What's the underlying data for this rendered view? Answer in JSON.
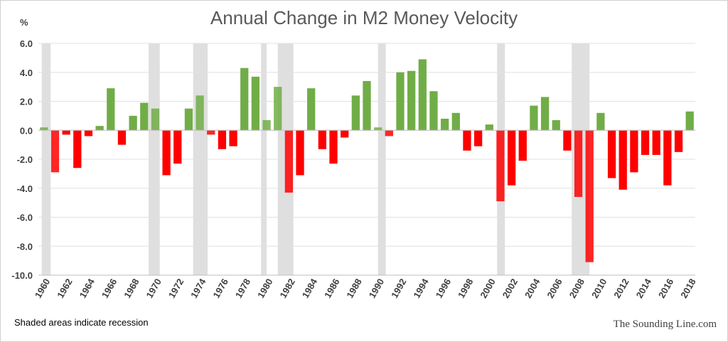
{
  "chart_data": {
    "type": "bar",
    "title": "Annual Change in M2 Money Velocity",
    "ylabel": "%",
    "ylim": [
      -10,
      6
    ],
    "yticks": [
      "6.0",
      "4.0",
      "2.0",
      "0.0",
      "-2.0",
      "-4.0",
      "-6.0",
      "-8.0",
      "-10.0"
    ],
    "ytick_values": [
      6,
      4,
      2,
      0,
      -2,
      -4,
      -6,
      -8,
      -10
    ],
    "x": [
      1960,
      1961,
      1962,
      1963,
      1964,
      1965,
      1966,
      1967,
      1968,
      1969,
      1970,
      1971,
      1972,
      1973,
      1974,
      1975,
      1976,
      1977,
      1978,
      1979,
      1980,
      1981,
      1982,
      1983,
      1984,
      1985,
      1986,
      1987,
      1988,
      1989,
      1990,
      1991,
      1992,
      1993,
      1994,
      1995,
      1996,
      1997,
      1998,
      1999,
      2000,
      2001,
      2002,
      2003,
      2004,
      2005,
      2006,
      2007,
      2008,
      2009,
      2010,
      2011,
      2012,
      2013,
      2014,
      2015,
      2016,
      2017,
      2018
    ],
    "xtick_labels": [
      "1960",
      "1962",
      "1964",
      "1966",
      "1968",
      "1970",
      "1972",
      "1974",
      "1976",
      "1978",
      "1980",
      "1982",
      "1984",
      "1986",
      "1988",
      "1990",
      "1992",
      "1994",
      "1996",
      "1998",
      "2000",
      "2002",
      "2004",
      "2006",
      "2008",
      "2010",
      "2012",
      "2014",
      "2016",
      "2018"
    ],
    "values": [
      0.2,
      -2.9,
      -0.3,
      -2.6,
      -0.4,
      0.3,
      2.9,
      -1.0,
      1.0,
      1.9,
      1.5,
      -3.1,
      -2.3,
      1.5,
      2.4,
      -0.3,
      -1.3,
      -1.1,
      4.3,
      3.7,
      0.7,
      3.0,
      -4.3,
      -3.1,
      2.9,
      -1.3,
      -2.3,
      -0.5,
      2.4,
      3.4,
      0.2,
      -0.4,
      4.0,
      4.1,
      4.9,
      2.7,
      0.8,
      1.2,
      -1.4,
      -1.1,
      0.4,
      -4.9,
      -3.8,
      -2.1,
      1.7,
      2.3,
      0.7,
      -1.4,
      -4.6,
      -9.1,
      1.2,
      -3.3,
      -4.1,
      -2.9,
      -1.7,
      -1.7,
      -3.8,
      -1.5,
      1.3
    ],
    "recessions": [
      [
        1960.3,
        1961.1
      ],
      [
        1969.9,
        1970.9
      ],
      [
        1973.9,
        1975.2
      ],
      [
        1980.0,
        1980.5
      ],
      [
        1981.5,
        1982.9
      ],
      [
        1990.5,
        1991.2
      ],
      [
        2001.2,
        2001.9
      ],
      [
        2007.9,
        2009.5
      ]
    ],
    "colors": {
      "positive": "#70AD47",
      "negative": "#FF0000",
      "recession": "#D9D9D9",
      "grid": "#E0E0E0",
      "axis": "#BFBFBF"
    },
    "grid": true,
    "legend": "none"
  },
  "notes": {
    "shaded": "Shaded areas indicate recession",
    "source": "The Sounding Line.com"
  }
}
